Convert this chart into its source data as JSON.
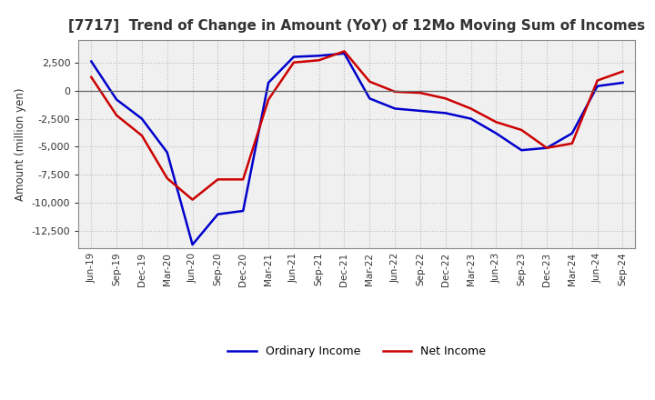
{
  "title": "[7717]  Trend of Change in Amount (YoY) of 12Mo Moving Sum of Incomes",
  "ylabel": "Amount (million yen)",
  "x_labels": [
    "Jun-19",
    "Sep-19",
    "Dec-19",
    "Mar-20",
    "Jun-20",
    "Sep-20",
    "Dec-20",
    "Mar-21",
    "Jun-21",
    "Sep-21",
    "Dec-21",
    "Mar-22",
    "Jun-22",
    "Sep-22",
    "Dec-22",
    "Mar-23",
    "Jun-23",
    "Sep-23",
    "Dec-23",
    "Mar-24",
    "Jun-24",
    "Sep-24"
  ],
  "ordinary_income": [
    2600,
    -800,
    -2500,
    -5500,
    -13700,
    -11000,
    -10700,
    700,
    3000,
    3100,
    3300,
    -700,
    -1600,
    -1800,
    -2000,
    -2500,
    -3800,
    -5300,
    -5100,
    -3800,
    400,
    700
  ],
  "net_income": [
    1200,
    -2200,
    -4000,
    -7800,
    -9700,
    -7900,
    -7900,
    -800,
    2500,
    2700,
    3500,
    800,
    -100,
    -200,
    -700,
    -1600,
    -2800,
    -3500,
    -5100,
    -4700,
    900,
    1700
  ],
  "ordinary_color": "#0000CC",
  "net_color": "#CC0000",
  "background_color": "#FFFFFF",
  "plot_bg_color": "#F0F0F0",
  "grid_color": "#BBBBBB",
  "ylim": [
    -14000,
    4500
  ],
  "yticks": [
    -12500,
    -10000,
    -7500,
    -5000,
    -2500,
    0,
    2500
  ],
  "legend_labels": [
    "Ordinary Income",
    "Net Income"
  ],
  "line_width": 1.8,
  "title_color": "#333333"
}
